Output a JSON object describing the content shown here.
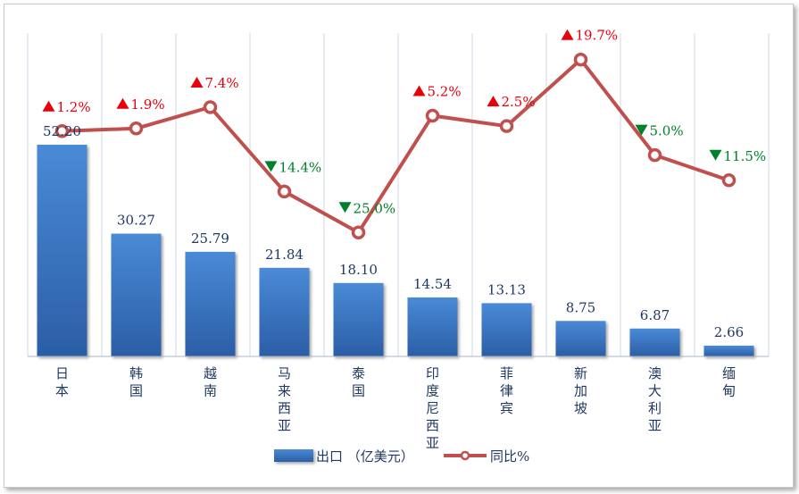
{
  "chart_data": {
    "type": "bar",
    "categories": [
      "日本",
      "韩国",
      "越南",
      "马来西亚",
      "泰国",
      "印度尼西亚",
      "菲律宾",
      "新加坡",
      "澳大利亚",
      "缅甸"
    ],
    "series": [
      {
        "name": "出口 （亿美元）",
        "kind": "bar",
        "values": [
          52.2,
          30.27,
          25.79,
          21.84,
          18.1,
          14.54,
          13.13,
          8.75,
          6.87,
          2.66
        ],
        "labels": [
          "52.20",
          "30.27",
          "25.79",
          "21.84",
          "18.10",
          "14.54",
          "13.13",
          "8.75",
          "6.87",
          "2.66"
        ],
        "color": "#3a78c6"
      },
      {
        "name": "同比%",
        "kind": "line",
        "values": [
          1.2,
          1.9,
          7.4,
          -14.4,
          -25.0,
          5.2,
          2.5,
          19.7,
          -5.0,
          -11.5
        ],
        "labels": [
          "1.2%",
          "1.9%",
          "7.4%",
          "14.4%",
          "25.0%",
          "5.2%",
          "2.5%",
          "19.7%",
          "5.0%",
          "11.5%"
        ],
        "color": "#c0504d"
      }
    ],
    "colors": {
      "up": "#e8000b",
      "down": "#00802b",
      "line": "#c0504d",
      "bar": "#3a78c6",
      "grid": "#cfd8e6"
    },
    "legend_position": "bottom",
    "grid": true
  }
}
